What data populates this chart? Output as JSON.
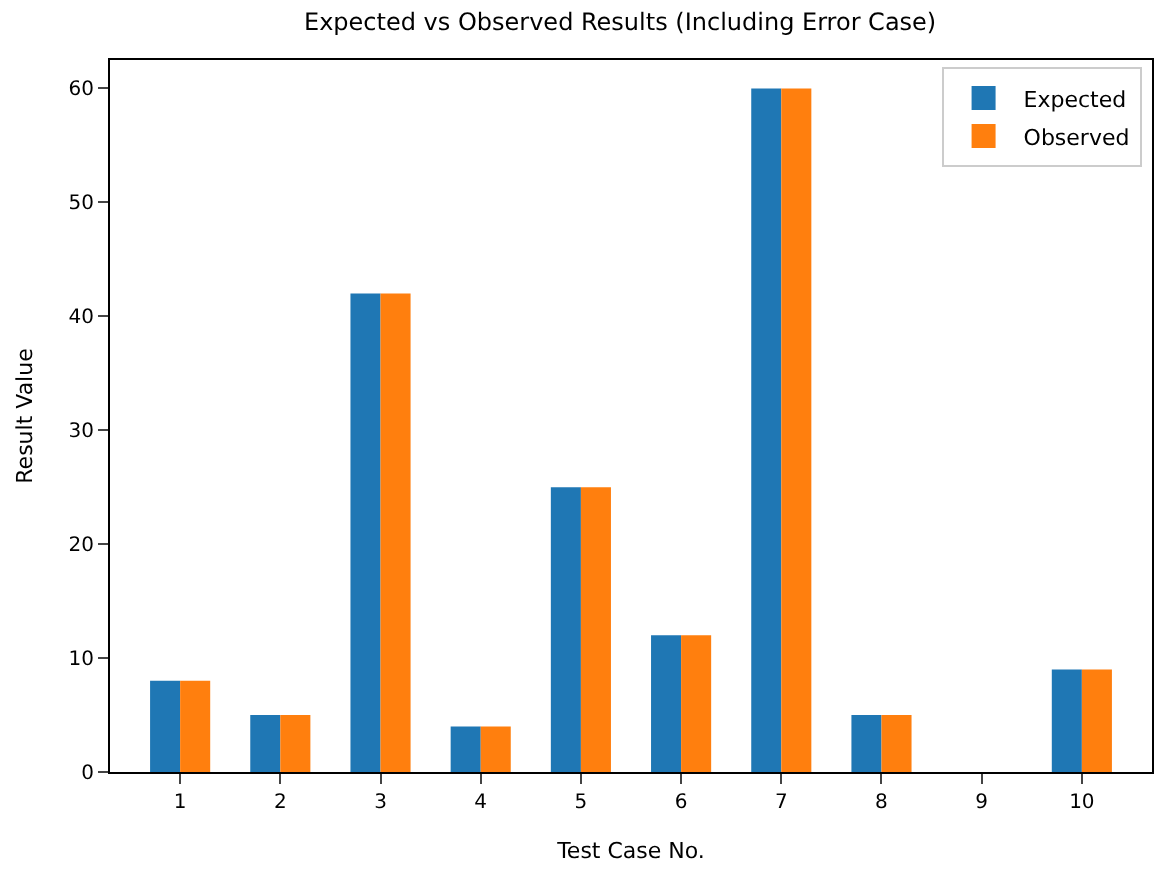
{
  "chart_data": {
    "type": "bar",
    "title": "Expected vs Observed Results (Including Error Case)",
    "xlabel": "Test Case No.",
    "ylabel": "Result Value",
    "categories": [
      "1",
      "2",
      "3",
      "4",
      "5",
      "6",
      "7",
      "8",
      "9",
      "10"
    ],
    "series": [
      {
        "name": "Expected",
        "color": "#1f77b4",
        "values": [
          8,
          5,
          42,
          4,
          25,
          12,
          60,
          5,
          null,
          9
        ]
      },
      {
        "name": "Observed",
        "color": "#ff7f0e",
        "values": [
          8,
          5,
          42,
          4,
          25,
          12,
          60,
          5,
          null,
          9
        ]
      }
    ],
    "ylim": [
      0,
      62.5
    ],
    "yticks": [
      0,
      10,
      20,
      30,
      40,
      50,
      60
    ],
    "legend": "top right"
  }
}
